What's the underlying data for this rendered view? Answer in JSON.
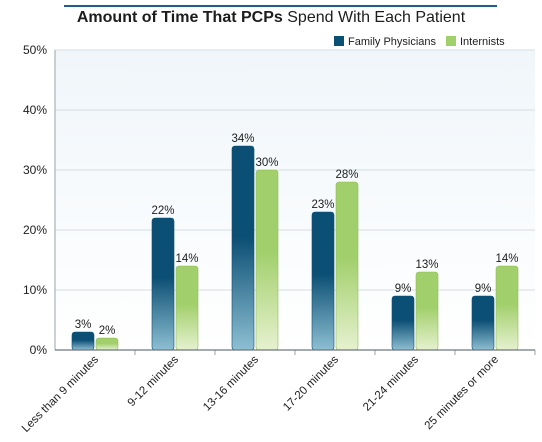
{
  "title_bold": "Amount of Time That PCPs",
  "title_rest": "Spend With Each Patient",
  "colors": {
    "family_dark": "#0c4f74",
    "family_light": "#8dbfd2",
    "intern_dark": "#a1cf6b",
    "intern_light": "#e6f1cf",
    "plot_bg_top": "#f0f6fa",
    "plot_bg_bottom": "#ffffff",
    "grid": "#d7dde3"
  },
  "chart_data": {
    "type": "bar",
    "title": "Amount of Time That PCPs Spend With Each Patient",
    "categories": [
      "Less than 9 minutes",
      "9-12 minutes",
      "13-16 minutes",
      "17-20 minutes",
      "21-24 minutes",
      "25 minutes or more"
    ],
    "series": [
      {
        "name": "Family Physicians",
        "values": [
          3,
          22,
          34,
          23,
          9,
          9
        ],
        "labels": [
          "3%",
          "22%",
          "34%",
          "23%",
          "9%",
          "9%"
        ]
      },
      {
        "name": "Internists",
        "values": [
          2,
          14,
          30,
          28,
          13,
          14
        ],
        "labels": [
          "2%",
          "14%",
          "30%",
          "28%",
          "13%",
          "14%"
        ]
      }
    ],
    "ylim": [
      0,
      50
    ],
    "yticks": [
      "0%",
      "10%",
      "20%",
      "30%",
      "40%",
      "50%"
    ],
    "grid": true,
    "legend_position": "top-right"
  }
}
